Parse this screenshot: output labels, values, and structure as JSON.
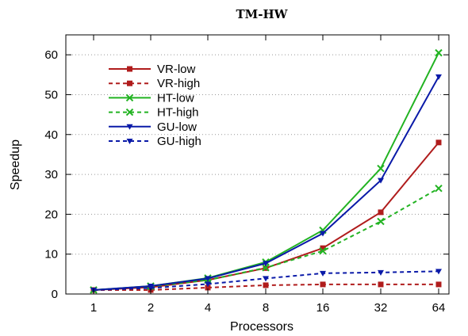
{
  "chart_data": {
    "type": "line",
    "title": "TM-HW",
    "xlabel": "Processors",
    "ylabel": "Speedup",
    "x": [
      "1",
      "2",
      "4",
      "8",
      "16",
      "32",
      "64"
    ],
    "ylim": [
      0,
      65
    ],
    "yticks": [
      0,
      10,
      20,
      30,
      40,
      50,
      60
    ],
    "grid": "horizontal-dotted",
    "legend_position": "top-left",
    "series": [
      {
        "name": "VR-low",
        "color": "#b01c1c",
        "dash": "solid",
        "marker": "square",
        "values": [
          1,
          1.7,
          3.5,
          6.5,
          11.5,
          20.5,
          38
        ]
      },
      {
        "name": "VR-high",
        "color": "#b01c1c",
        "dash": "dashed",
        "marker": "square",
        "values": [
          1,
          1.0,
          1.6,
          2.2,
          2.4,
          2.4,
          2.4
        ]
      },
      {
        "name": "HT-low",
        "color": "#22b322",
        "dash": "solid",
        "marker": "x",
        "values": [
          1,
          2.0,
          4.0,
          8.0,
          16,
          31.5,
          60.5
        ]
      },
      {
        "name": "HT-high",
        "color": "#22b322",
        "dash": "dashed",
        "marker": "x",
        "values": [
          1,
          1.9,
          3.5,
          6.6,
          10.8,
          18.2,
          26.5
        ]
      },
      {
        "name": "GU-low",
        "color": "#0a1aa8",
        "dash": "solid",
        "marker": "triangle",
        "values": [
          1,
          2.0,
          3.9,
          7.7,
          15.2,
          28.5,
          54.5
        ]
      },
      {
        "name": "GU-high",
        "color": "#0a1aa8",
        "dash": "dashed",
        "marker": "triangle",
        "values": [
          1,
          1.5,
          2.5,
          3.9,
          5.2,
          5.4,
          5.7
        ]
      }
    ]
  }
}
